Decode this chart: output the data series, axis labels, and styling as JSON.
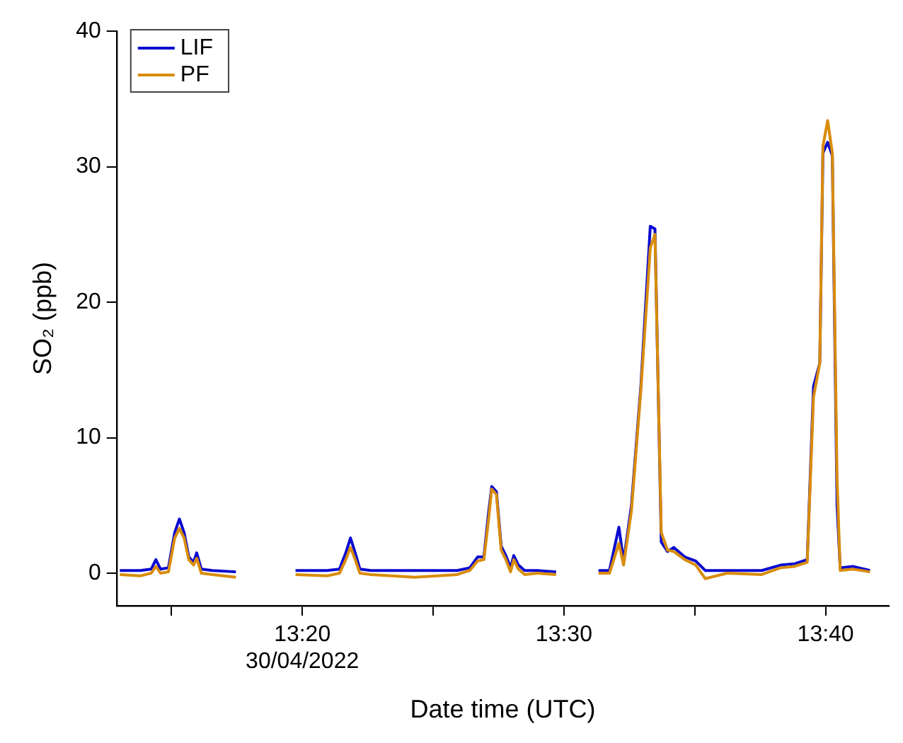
{
  "chart_data": {
    "type": "line",
    "xlabel": "Date time (UTC)",
    "ylabel": "SO₂ (ppb)",
    "x": [
      13.217,
      13.23,
      13.237,
      13.24,
      13.243,
      13.248,
      13.252,
      13.255,
      13.258,
      13.261,
      13.264,
      13.266,
      13.269,
      13.276,
      13.291,
      13.31,
      13.329,
      13.349,
      13.357,
      13.361,
      13.364,
      13.367,
      13.37,
      13.377,
      13.405,
      13.432,
      13.44,
      13.445,
      13.449,
      13.452,
      13.454,
      13.457,
      13.46,
      13.463,
      13.466,
      13.468,
      13.471,
      13.475,
      13.483,
      13.495,
      13.51,
      13.522,
      13.529,
      13.535,
      13.538,
      13.543,
      13.549,
      13.555,
      13.558,
      13.562,
      13.566,
      13.57,
      13.577,
      13.584,
      13.59,
      13.604,
      13.626,
      13.638,
      13.647,
      13.655,
      13.659,
      13.663,
      13.665,
      13.668,
      13.671,
      13.674,
      13.676,
      13.684,
      13.695
    ],
    "series": [
      {
        "name": "LIF",
        "color": "#0a0ad0",
        "values": [
          0.2,
          0.2,
          0.3,
          1.0,
          0.3,
          0.4,
          3.0,
          4.0,
          3.0,
          1.2,
          0.8,
          1.5,
          0.3,
          0.2,
          0.1,
          null,
          0.2,
          0.2,
          0.3,
          1.5,
          2.6,
          1.5,
          0.3,
          0.2,
          0.2,
          0.2,
          0.4,
          1.2,
          1.2,
          4.5,
          6.4,
          6.0,
          2.0,
          1.3,
          0.4,
          1.3,
          0.6,
          0.2,
          0.2,
          0.1,
          null,
          0.2,
          0.2,
          3.4,
          0.9,
          5.0,
          13.8,
          25.6,
          25.4,
          2.3,
          1.6,
          1.9,
          1.2,
          0.9,
          0.2,
          0.2,
          0.2,
          0.6,
          0.7,
          1.0,
          13.8,
          15.5,
          31.0,
          31.8,
          30.8,
          5.0,
          0.4,
          0.5,
          0.2
        ]
      },
      {
        "name": "PF",
        "color": "#d98c0a",
        "values": [
          -0.1,
          -0.2,
          0.0,
          0.5,
          0.0,
          0.1,
          2.6,
          3.3,
          2.6,
          1.0,
          0.6,
          1.1,
          0.0,
          -0.1,
          -0.3,
          null,
          -0.1,
          -0.2,
          0.0,
          1.0,
          1.9,
          1.0,
          0.0,
          -0.1,
          -0.3,
          -0.1,
          0.2,
          0.9,
          1.0,
          4.0,
          6.2,
          5.8,
          1.7,
          1.0,
          0.1,
          1.0,
          0.3,
          -0.1,
          0.0,
          -0.1,
          null,
          0.0,
          0.0,
          2.2,
          0.6,
          4.6,
          13.5,
          24.0,
          25.0,
          3.0,
          1.7,
          1.6,
          1.0,
          0.6,
          -0.4,
          0.0,
          -0.1,
          0.4,
          0.5,
          0.8,
          13.0,
          15.5,
          31.5,
          33.4,
          31.0,
          7.0,
          0.2,
          0.3,
          0.1
        ]
      }
    ],
    "xlim": [
      13.215,
      13.707
    ],
    "xticks": [
      {
        "value": 13.25,
        "label": null
      },
      {
        "value": 13.3333,
        "label": "13:20\n30/04/2022"
      },
      {
        "value": 13.4167,
        "label": null
      },
      {
        "value": 13.5,
        "label": "13:30"
      },
      {
        "value": 13.5833,
        "label": null
      },
      {
        "value": 13.6667,
        "label": "13:40"
      }
    ],
    "ylim": [
      -2.4,
      40
    ],
    "yticks": [
      0,
      10,
      20,
      30,
      40
    ],
    "grid": false,
    "legend": "top left",
    "marker": "none",
    "line_style": "solid"
  }
}
